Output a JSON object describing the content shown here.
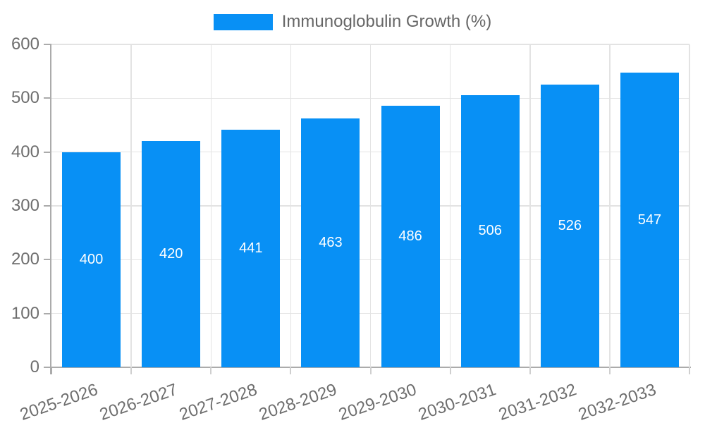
{
  "legend": {
    "label": "Immunoglobulin Growth (%)"
  },
  "colors": {
    "bar": "#0890f5",
    "grid": "#e3e3e3",
    "axis_line": "#ababab",
    "x_tick": "#cfcfcf",
    "axis_text": "#6e6e6e",
    "legend_text": "#666666",
    "value_label": "#ffffff",
    "background": "#ffffff"
  },
  "chart_data": {
    "type": "bar",
    "title": "",
    "xlabel": "",
    "ylabel": "",
    "categories": [
      "2025-2026",
      "2026-2027",
      "2027-2028",
      "2028-2029",
      "2029-2030",
      "2030-2031",
      "2031-2032",
      "2032-2033"
    ],
    "series": [
      {
        "name": "Immunoglobulin Growth (%)",
        "values": [
          400,
          420,
          441,
          463,
          486,
          506,
          526,
          547
        ]
      }
    ],
    "bar_value_labels": [
      "400",
      "420",
      "441",
      "463",
      "486",
      "506",
      "526",
      "547"
    ],
    "ylim": [
      0,
      600
    ],
    "yticks": [
      0,
      100,
      200,
      300,
      400,
      500,
      600
    ],
    "ytick_labels": [
      "0",
      "100",
      "200",
      "300",
      "400",
      "500",
      "600"
    ],
    "grid": true,
    "legend_position": "top",
    "x_label_rotation_deg": -19
  }
}
